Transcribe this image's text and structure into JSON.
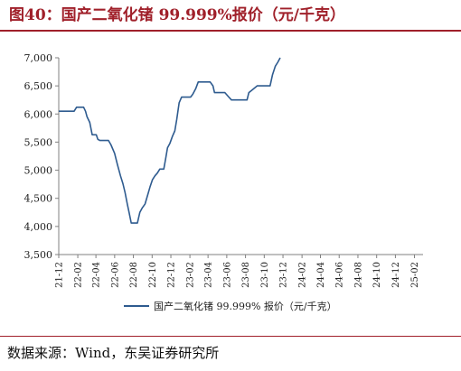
{
  "title": "图40：国产二氧化锗 99.999%报价（元/千克）",
  "source": "数据来源：Wind，东吴证券研究所",
  "colors": {
    "accent": "#a0202a",
    "series": "#2e5b8f",
    "axis": "#808080"
  },
  "chart_data": {
    "type": "line",
    "ylim": [
      3500,
      7000
    ],
    "yticks": [
      "3,500",
      "4,000",
      "4,500",
      "5,000",
      "5,500",
      "6,000",
      "6,500",
      "7,000"
    ],
    "ytick_values": [
      3500,
      4000,
      4500,
      5000,
      5500,
      6000,
      6500,
      7000
    ],
    "xticks": [
      "21-12",
      "22-02",
      "22-04",
      "22-06",
      "22-08",
      "22-10",
      "22-12",
      "23-02",
      "23-04",
      "23-06",
      "23-08",
      "23-10",
      "23-12",
      "24-02",
      "24-04",
      "24-06",
      "24-08",
      "24-10",
      "24-12",
      "25-02"
    ],
    "xlim": [
      "2021-12",
      "2025-03"
    ],
    "grid": false,
    "legend_position": "bottom",
    "series": [
      {
        "name": "国产二氧化锗 99.999% 报价（元/千克）",
        "points": [
          [
            "2021-12-01",
            6050
          ],
          [
            "2022-01-10",
            6050
          ],
          [
            "2022-01-20",
            6050
          ],
          [
            "2022-01-28",
            6120
          ],
          [
            "2022-02-20",
            6120
          ],
          [
            "2022-02-26",
            6050
          ],
          [
            "2022-03-03",
            5950
          ],
          [
            "2022-03-12",
            5850
          ],
          [
            "2022-03-20",
            5630
          ],
          [
            "2022-04-02",
            5630
          ],
          [
            "2022-04-07",
            5550
          ],
          [
            "2022-04-14",
            5530
          ],
          [
            "2022-04-30",
            5530
          ],
          [
            "2022-05-12",
            5530
          ],
          [
            "2022-05-20",
            5450
          ],
          [
            "2022-06-01",
            5300
          ],
          [
            "2022-06-10",
            5100
          ],
          [
            "2022-06-20",
            4900
          ],
          [
            "2022-06-28",
            4760
          ],
          [
            "2022-07-05",
            4600
          ],
          [
            "2022-07-12",
            4400
          ],
          [
            "2022-07-18",
            4250
          ],
          [
            "2022-07-25",
            4060
          ],
          [
            "2022-08-04",
            4060
          ],
          [
            "2022-08-14",
            4060
          ],
          [
            "2022-08-22",
            4250
          ],
          [
            "2022-08-30",
            4330
          ],
          [
            "2022-09-08",
            4400
          ],
          [
            "2022-09-16",
            4550
          ],
          [
            "2022-09-24",
            4700
          ],
          [
            "2022-10-02",
            4830
          ],
          [
            "2022-10-10",
            4900
          ],
          [
            "2022-10-18",
            4950
          ],
          [
            "2022-10-26",
            5020
          ],
          [
            "2022-11-08",
            5020
          ],
          [
            "2022-11-14",
            5200
          ],
          [
            "2022-11-20",
            5400
          ],
          [
            "2022-11-28",
            5480
          ],
          [
            "2022-12-06",
            5600
          ],
          [
            "2022-12-14",
            5700
          ],
          [
            "2022-12-20",
            5900
          ],
          [
            "2022-12-28",
            6200
          ],
          [
            "2023-01-05",
            6300
          ],
          [
            "2023-02-03",
            6300
          ],
          [
            "2023-02-10",
            6350
          ],
          [
            "2023-02-20",
            6450
          ],
          [
            "2023-02-28",
            6570
          ],
          [
            "2023-03-26",
            6570
          ],
          [
            "2023-04-08",
            6570
          ],
          [
            "2023-04-17",
            6500
          ],
          [
            "2023-04-22",
            6380
          ],
          [
            "2023-05-26",
            6380
          ],
          [
            "2023-06-08",
            6300
          ],
          [
            "2023-06-16",
            6250
          ],
          [
            "2023-07-21",
            6250
          ],
          [
            "2023-08-06",
            6250
          ],
          [
            "2023-08-12",
            6380
          ],
          [
            "2023-08-21",
            6420
          ],
          [
            "2023-09-08",
            6500
          ],
          [
            "2023-10-20",
            6500
          ],
          [
            "2023-10-28",
            6700
          ],
          [
            "2023-11-06",
            6850
          ],
          [
            "2023-11-14",
            6920
          ],
          [
            "2023-11-22",
            7000
          ]
        ]
      }
    ]
  }
}
